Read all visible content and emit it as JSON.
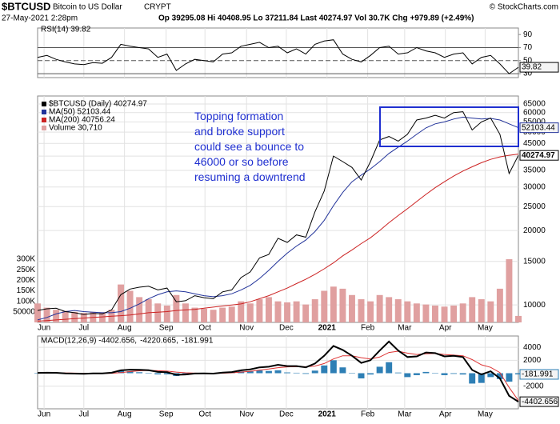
{
  "header": {
    "symbol": "$BTCUSD",
    "name": "Bitcoin to US Dollar",
    "exchange": "CRYPT",
    "brand": "© StockCharts.com",
    "date": "27-May-2021 2:28pm",
    "quote": "Op 39295.08 Hi 40408.95 Lo 37211.84 Last 40274.97 Vol 30.7K Chg +979.89 (+2.49%)"
  },
  "chart_data": [
    {
      "type": "line",
      "title": "RSI(14) 39.82",
      "x": [
        0,
        1,
        2,
        3,
        4,
        5,
        6,
        7,
        8,
        9,
        10,
        11,
        12,
        13,
        14,
        15,
        16,
        17,
        18,
        19,
        20,
        21,
        22,
        23,
        24,
        25,
        26,
        27,
        28,
        29,
        30,
        31,
        32,
        33,
        34,
        35,
        36,
        37,
        38,
        39,
        40,
        41,
        42,
        43,
        44,
        45,
        46,
        47,
        48,
        49,
        50,
        51,
        52
      ],
      "xlim": [
        0,
        52
      ],
      "ylim": [
        24,
        100
      ],
      "yticks": [
        30,
        50,
        70,
        90
      ],
      "ref_lines": [
        70,
        50,
        30
      ],
      "series": [
        {
          "color": "#000000",
          "tag": true,
          "values": [
            55,
            58,
            52,
            48,
            45,
            44,
            47,
            46,
            55,
            75,
            72,
            70,
            68,
            55,
            60,
            35,
            45,
            52,
            50,
            48,
            60,
            62,
            72,
            75,
            78,
            70,
            72,
            62,
            68,
            60,
            75,
            80,
            82,
            60,
            52,
            48,
            58,
            70,
            72,
            60,
            62,
            70,
            65,
            62,
            55,
            60,
            62,
            45,
            55,
            58,
            45,
            30,
            39.82
          ]
        }
      ]
    },
    {
      "type": "line",
      "log_scale": true,
      "grid": true,
      "legend": "top-left",
      "annotation": [
        "Topping formation",
        "and broke support",
        "could see a bounce to",
        "46000 or so before",
        "resuming a downtrend"
      ],
      "x": [
        0,
        1,
        2,
        3,
        4,
        5,
        6,
        7,
        8,
        9,
        10,
        11,
        12,
        13,
        14,
        15,
        16,
        17,
        18,
        19,
        20,
        21,
        22,
        23,
        24,
        25,
        26,
        27,
        28,
        29,
        30,
        31,
        32,
        33,
        34,
        35,
        36,
        37,
        38,
        39,
        40,
        41,
        42,
        43,
        44,
        45,
        46,
        47,
        48,
        49,
        50,
        51,
        52
      ],
      "xlim": [
        0,
        52
      ],
      "xticks": [
        {
          "value": 0.7,
          "label": "Jun"
        },
        {
          "value": 5,
          "label": "Jul"
        },
        {
          "value": 9.4,
          "label": "Aug"
        },
        {
          "value": 13.9,
          "label": "Sep"
        },
        {
          "value": 18.1,
          "label": "Oct"
        },
        {
          "value": 22.6,
          "label": "Nov"
        },
        {
          "value": 26.9,
          "label": "Dec"
        },
        {
          "value": 31.3,
          "label": "2021"
        },
        {
          "value": 35.7,
          "label": "Feb"
        },
        {
          "value": 39.7,
          "label": "Mar"
        },
        {
          "value": 44.1,
          "label": "Apr"
        },
        {
          "value": 48.4,
          "label": "May"
        }
      ],
      "ylim": [
        8500,
        70000
      ],
      "yticks": [
        10000,
        15000,
        20000,
        25000,
        30000,
        35000,
        40000,
        45000,
        50000,
        55000,
        60000,
        65000
      ],
      "y2lim": [
        0,
        1075000
      ],
      "y2ticks": [
        50000,
        {
          "value": 100000,
          "label": "100K"
        },
        {
          "value": 150000,
          "label": "150K"
        },
        {
          "value": 200000,
          "label": "200K"
        },
        {
          "value": 250000,
          "label": "250K"
        },
        {
          "value": 300000,
          "label": "300K"
        }
      ],
      "series": [
        {
          "name": "Volume 30,710",
          "color": "#e0a0a0",
          "kind": "bar",
          "axis": "y2",
          "values": [
            90000,
            70000,
            60000,
            55000,
            50000,
            45000,
            50000,
            48000,
            60000,
            180000,
            150000,
            120000,
            110000,
            90000,
            80000,
            130000,
            90000,
            70000,
            65000,
            60000,
            70000,
            75000,
            100000,
            90000,
            110000,
            120000,
            100000,
            95000,
            100000,
            85000,
            110000,
            150000,
            170000,
            160000,
            130000,
            110000,
            100000,
            130000,
            120000,
            110000,
            100000,
            90000,
            85000,
            80000,
            75000,
            80000,
            90000,
            120000,
            110000,
            100000,
            160000,
            300000,
            30710
          ]
        },
        {
          "name": "MA(200) 40756.24",
          "color": "#cc2222",
          "values": [
            8600,
            8650,
            8700,
            8750,
            8800,
            8850,
            8900,
            8950,
            9000,
            9050,
            9100,
            9200,
            9300,
            9350,
            9400,
            9500,
            9550,
            9600,
            9700,
            9800,
            9900,
            10000,
            10100,
            10300,
            10600,
            10900,
            11300,
            11700,
            12200,
            12700,
            13300,
            14000,
            14800,
            15800,
            16700,
            17700,
            18700,
            20000,
            21500,
            23000,
            24500,
            26200,
            28000,
            29800,
            31500,
            33200,
            34800,
            36200,
            37600,
            38800,
            39700,
            40300,
            40756.24
          ]
        },
        {
          "name": "MA(50) 52103.44",
          "color": "#22339a",
          "tag": true,
          "values": [
            8700,
            8900,
            9200,
            9400,
            9500,
            9400,
            9350,
            9300,
            9300,
            9400,
            9700,
            10100,
            10600,
            11000,
            11300,
            11400,
            11300,
            11100,
            10900,
            10800,
            10900,
            11100,
            11500,
            12000,
            12800,
            13800,
            15000,
            16200,
            17300,
            18300,
            19800,
            22000,
            25200,
            28500,
            31500,
            33500,
            35500,
            38000,
            41000,
            43500,
            46000,
            49000,
            52000,
            54000,
            55000,
            56500,
            57500,
            57000,
            56500,
            56800,
            56000,
            54000,
            52103.44
          ]
        },
        {
          "name": "$BTCUSD (Daily) 40274.97",
          "color": "#000000",
          "tag": true,
          "values": [
            9500,
            9650,
            9700,
            9400,
            9300,
            9150,
            9250,
            9200,
            9550,
            11000,
            11600,
            11800,
            11900,
            11500,
            11700,
            10300,
            10400,
            10900,
            10700,
            10600,
            11300,
            11500,
            12900,
            13600,
            15500,
            16000,
            18600,
            17900,
            19200,
            18800,
            23800,
            28900,
            40000,
            38000,
            36000,
            32000,
            38000,
            46500,
            48000,
            46000,
            49000,
            56000,
            57000,
            58500,
            57000,
            60000,
            60500,
            51000,
            55000,
            57000,
            49000,
            34000,
            40274.97
          ]
        }
      ]
    },
    {
      "type": "line",
      "grid": true,
      "legend": "inline",
      "x": [
        0,
        1,
        2,
        3,
        4,
        5,
        6,
        7,
        8,
        9,
        10,
        11,
        12,
        13,
        14,
        15,
        16,
        17,
        18,
        19,
        20,
        21,
        22,
        23,
        24,
        25,
        26,
        27,
        28,
        29,
        30,
        31,
        32,
        33,
        34,
        35,
        36,
        37,
        38,
        39,
        40,
        41,
        42,
        43,
        44,
        45,
        46,
        47,
        48,
        49,
        50,
        51,
        52
      ],
      "xlim": [
        0,
        52
      ],
      "ylim": [
        -5500,
        5750
      ],
      "yticks": [
        -2000,
        2000,
        4000
      ],
      "series": [
        {
          "name": "-181.991",
          "color": "#2e7fb5",
          "kind": "bar",
          "tag": true,
          "values": [
            10,
            25,
            0,
            -60,
            -75,
            -70,
            -10,
            5,
            90,
            350,
            300,
            150,
            30,
            -180,
            -170,
            -430,
            -260,
            -60,
            -20,
            -20,
            100,
            120,
            280,
            300,
            420,
            350,
            450,
            120,
            70,
            -100,
            400,
            1200,
            2000,
            900,
            0,
            -800,
            -200,
            1000,
            1700,
            100,
            -600,
            -300,
            200,
            50,
            -300,
            -100,
            -200,
            -1600,
            -1500,
            -600,
            -900,
            -1300,
            -181.991
          ]
        },
        {
          "name": "-4220.665,",
          "color": "#dd3333",
          "values": [
            40,
            55,
            60,
            40,
            15,
            -10,
            -30,
            -35,
            -10,
            100,
            250,
            370,
            430,
            380,
            320,
            180,
            60,
            10,
            -20,
            -40,
            0,
            60,
            170,
            300,
            480,
            650,
            850,
            980,
            1030,
            1000,
            1100,
            1500,
            2200,
            2700,
            2700,
            2400,
            2200,
            2500,
            3200,
            3400,
            3100,
            2900,
            3000,
            3050,
            2900,
            2800,
            2700,
            2100,
            1300,
            900,
            100,
            -2200,
            -4220.665
          ]
        },
        {
          "name": "MACD(12,26,9) -4402.656,",
          "color": "#000000",
          "width": 2,
          "tag": true,
          "values": [
            50,
            80,
            60,
            -20,
            -60,
            -80,
            -40,
            -30,
            80,
            450,
            550,
            520,
            460,
            200,
            150,
            -250,
            -200,
            -50,
            -40,
            -60,
            100,
            180,
            450,
            600,
            900,
            1000,
            1300,
            1100,
            1100,
            900,
            1500,
            2700,
            4200,
            3600,
            2700,
            1600,
            2000,
            3500,
            4900,
            3500,
            2500,
            2600,
            3200,
            3100,
            2600,
            2700,
            2500,
            500,
            -200,
            300,
            -800,
            -3500,
            -4402.656
          ]
        }
      ]
    }
  ]
}
